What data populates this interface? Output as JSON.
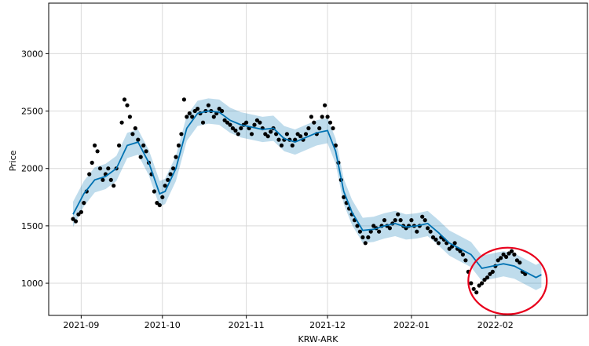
{
  "chart_data": {
    "type": "scatter",
    "title": "",
    "xlabel": "KRW-ARK",
    "ylabel": "Price",
    "x_ticks": [
      "2021-09",
      "2021-10",
      "2021-11",
      "2021-12",
      "2022-01",
      "2022-02"
    ],
    "y_ticks": [
      1000,
      1500,
      2000,
      2500,
      3000
    ],
    "xlim": [
      "2021-08-20",
      "2022-03-07"
    ],
    "ylim": [
      720,
      3440
    ],
    "grid": true,
    "series": [
      {
        "kind": "observed_points",
        "color": "#000000",
        "points": [
          [
            "2021-08-29",
            1560
          ],
          [
            "2021-08-30",
            1540
          ],
          [
            "2021-08-31",
            1600
          ],
          [
            "2021-09-01",
            1620
          ],
          [
            "2021-09-02",
            1700
          ],
          [
            "2021-09-03",
            1800
          ],
          [
            "2021-09-04",
            1950
          ],
          [
            "2021-09-05",
            2050
          ],
          [
            "2021-09-06",
            2200
          ],
          [
            "2021-09-07",
            2150
          ],
          [
            "2021-09-08",
            2000
          ],
          [
            "2021-09-09",
            1900
          ],
          [
            "2021-09-10",
            1950
          ],
          [
            "2021-09-11",
            2000
          ],
          [
            "2021-09-12",
            1900
          ],
          [
            "2021-09-13",
            1850
          ],
          [
            "2021-09-14",
            2000
          ],
          [
            "2021-09-15",
            2200
          ],
          [
            "2021-09-16",
            2400
          ],
          [
            "2021-09-17",
            2600
          ],
          [
            "2021-09-18",
            2550
          ],
          [
            "2021-09-19",
            2450
          ],
          [
            "2021-09-20",
            2300
          ],
          [
            "2021-09-21",
            2350
          ],
          [
            "2021-09-22",
            2250
          ],
          [
            "2021-09-23",
            2100
          ],
          [
            "2021-09-24",
            2200
          ],
          [
            "2021-09-25",
            2150
          ],
          [
            "2021-09-26",
            2050
          ],
          [
            "2021-09-27",
            1950
          ],
          [
            "2021-09-28",
            1800
          ],
          [
            "2021-09-29",
            1700
          ],
          [
            "2021-09-30",
            1680
          ],
          [
            "2021-10-01",
            1750
          ],
          [
            "2021-10-02",
            1850
          ],
          [
            "2021-10-03",
            1900
          ],
          [
            "2021-10-04",
            1950
          ],
          [
            "2021-10-05",
            2000
          ],
          [
            "2021-10-06",
            2100
          ],
          [
            "2021-10-07",
            2200
          ],
          [
            "2021-10-08",
            2300
          ],
          [
            "2021-10-09",
            2600
          ],
          [
            "2021-10-10",
            2450
          ],
          [
            "2021-10-11",
            2480
          ],
          [
            "2021-10-12",
            2450
          ],
          [
            "2021-10-13",
            2500
          ],
          [
            "2021-10-14",
            2520
          ],
          [
            "2021-10-15",
            2480
          ],
          [
            "2021-10-16",
            2400
          ],
          [
            "2021-10-17",
            2500
          ],
          [
            "2021-10-18",
            2550
          ],
          [
            "2021-10-19",
            2500
          ],
          [
            "2021-10-20",
            2450
          ],
          [
            "2021-10-21",
            2480
          ],
          [
            "2021-10-22",
            2520
          ],
          [
            "2021-10-23",
            2500
          ],
          [
            "2021-10-24",
            2420
          ],
          [
            "2021-10-25",
            2400
          ],
          [
            "2021-10-26",
            2380
          ],
          [
            "2021-10-27",
            2350
          ],
          [
            "2021-10-28",
            2330
          ],
          [
            "2021-10-29",
            2300
          ],
          [
            "2021-10-30",
            2350
          ],
          [
            "2021-10-31",
            2380
          ],
          [
            "2021-11-01",
            2400
          ],
          [
            "2021-11-02",
            2350
          ],
          [
            "2021-11-03",
            2300
          ],
          [
            "2021-11-04",
            2380
          ],
          [
            "2021-11-05",
            2420
          ],
          [
            "2021-11-06",
            2400
          ],
          [
            "2021-11-07",
            2350
          ],
          [
            "2021-11-08",
            2300
          ],
          [
            "2021-11-09",
            2280
          ],
          [
            "2021-11-10",
            2320
          ],
          [
            "2021-11-11",
            2350
          ],
          [
            "2021-11-12",
            2300
          ],
          [
            "2021-11-13",
            2250
          ],
          [
            "2021-11-14",
            2200
          ],
          [
            "2021-11-15",
            2250
          ],
          [
            "2021-11-16",
            2300
          ],
          [
            "2021-11-17",
            2250
          ],
          [
            "2021-11-18",
            2200
          ],
          [
            "2021-11-19",
            2250
          ],
          [
            "2021-11-20",
            2300
          ],
          [
            "2021-11-21",
            2280
          ],
          [
            "2021-11-22",
            2250
          ],
          [
            "2021-11-23",
            2300
          ],
          [
            "2021-11-24",
            2350
          ],
          [
            "2021-11-25",
            2450
          ],
          [
            "2021-11-26",
            2400
          ],
          [
            "2021-11-27",
            2300
          ],
          [
            "2021-11-28",
            2350
          ],
          [
            "2021-11-29",
            2450
          ],
          [
            "2021-11-30",
            2550
          ],
          [
            "2021-12-01",
            2450
          ],
          [
            "2021-12-02",
            2400
          ],
          [
            "2021-12-03",
            2350
          ],
          [
            "2021-12-04",
            2200
          ],
          [
            "2021-12-05",
            2050
          ],
          [
            "2021-12-06",
            1900
          ],
          [
            "2021-12-07",
            1750
          ],
          [
            "2021-12-08",
            1700
          ],
          [
            "2021-12-09",
            1650
          ],
          [
            "2021-12-10",
            1600
          ],
          [
            "2021-12-11",
            1550
          ],
          [
            "2021-12-12",
            1500
          ],
          [
            "2021-12-13",
            1450
          ],
          [
            "2021-12-14",
            1400
          ],
          [
            "2021-12-15",
            1350
          ],
          [
            "2021-12-16",
            1400
          ],
          [
            "2021-12-17",
            1450
          ],
          [
            "2021-12-18",
            1500
          ],
          [
            "2021-12-19",
            1480
          ],
          [
            "2021-12-20",
            1450
          ],
          [
            "2021-12-21",
            1500
          ],
          [
            "2021-12-22",
            1550
          ],
          [
            "2021-12-23",
            1500
          ],
          [
            "2021-12-24",
            1480
          ],
          [
            "2021-12-25",
            1520
          ],
          [
            "2021-12-26",
            1550
          ],
          [
            "2021-12-27",
            1600
          ],
          [
            "2021-12-28",
            1550
          ],
          [
            "2021-12-29",
            1500
          ],
          [
            "2021-12-30",
            1480
          ],
          [
            "2021-12-31",
            1500
          ],
          [
            "2022-01-01",
            1550
          ],
          [
            "2022-01-02",
            1500
          ],
          [
            "2022-01-03",
            1450
          ],
          [
            "2022-01-04",
            1500
          ],
          [
            "2022-01-05",
            1580
          ],
          [
            "2022-01-06",
            1550
          ],
          [
            "2022-01-07",
            1480
          ],
          [
            "2022-01-08",
            1450
          ],
          [
            "2022-01-09",
            1400
          ],
          [
            "2022-01-10",
            1380
          ],
          [
            "2022-01-11",
            1350
          ],
          [
            "2022-01-12",
            1400
          ],
          [
            "2022-01-13",
            1380
          ],
          [
            "2022-01-14",
            1350
          ],
          [
            "2022-01-15",
            1300
          ],
          [
            "2022-01-16",
            1320
          ],
          [
            "2022-01-17",
            1350
          ],
          [
            "2022-01-18",
            1300
          ],
          [
            "2022-01-19",
            1280
          ],
          [
            "2022-01-20",
            1250
          ],
          [
            "2022-01-21",
            1200
          ],
          [
            "2022-01-22",
            1100
          ],
          [
            "2022-01-23",
            1000
          ],
          [
            "2022-01-24",
            950
          ],
          [
            "2022-01-25",
            920
          ],
          [
            "2022-01-26",
            980
          ],
          [
            "2022-01-27",
            1000
          ],
          [
            "2022-01-28",
            1030
          ],
          [
            "2022-01-29",
            1050
          ],
          [
            "2022-01-30",
            1080
          ],
          [
            "2022-01-31",
            1100
          ],
          [
            "2022-02-01",
            1150
          ],
          [
            "2022-02-02",
            1200
          ],
          [
            "2022-02-03",
            1220
          ],
          [
            "2022-02-04",
            1250
          ],
          [
            "2022-02-05",
            1230
          ],
          [
            "2022-02-06",
            1260
          ],
          [
            "2022-02-07",
            1280
          ],
          [
            "2022-02-08",
            1250
          ],
          [
            "2022-02-09",
            1200
          ],
          [
            "2022-02-10",
            1180
          ],
          [
            "2022-02-11",
            1100
          ],
          [
            "2022-02-12",
            1080
          ]
        ]
      },
      {
        "kind": "forecast_line",
        "color": "#0072B2",
        "points": [
          [
            "2021-08-29",
            1600
          ],
          [
            "2021-09-02",
            1780
          ],
          [
            "2021-09-06",
            1900
          ],
          [
            "2021-09-10",
            1930
          ],
          [
            "2021-09-14",
            2000
          ],
          [
            "2021-09-18",
            2200
          ],
          [
            "2021-09-22",
            2230
          ],
          [
            "2021-09-26",
            2050
          ],
          [
            "2021-09-30",
            1780
          ],
          [
            "2021-10-02",
            1800
          ],
          [
            "2021-10-06",
            2000
          ],
          [
            "2021-10-10",
            2350
          ],
          [
            "2021-10-14",
            2480
          ],
          [
            "2021-10-18",
            2500
          ],
          [
            "2021-10-22",
            2490
          ],
          [
            "2021-10-26",
            2420
          ],
          [
            "2021-10-30",
            2380
          ],
          [
            "2021-11-03",
            2360
          ],
          [
            "2021-11-07",
            2340
          ],
          [
            "2021-11-11",
            2350
          ],
          [
            "2021-11-15",
            2260
          ],
          [
            "2021-11-19",
            2230
          ],
          [
            "2021-11-23",
            2270
          ],
          [
            "2021-11-27",
            2310
          ],
          [
            "2021-12-01",
            2330
          ],
          [
            "2021-12-04",
            2150
          ],
          [
            "2021-12-07",
            1800
          ],
          [
            "2021-12-10",
            1620
          ],
          [
            "2021-12-14",
            1460
          ],
          [
            "2021-12-18",
            1470
          ],
          [
            "2021-12-22",
            1500
          ],
          [
            "2021-12-26",
            1520
          ],
          [
            "2021-12-30",
            1490
          ],
          [
            "2022-01-03",
            1500
          ],
          [
            "2022-01-07",
            1520
          ],
          [
            "2022-01-11",
            1440
          ],
          [
            "2022-01-15",
            1350
          ],
          [
            "2022-01-19",
            1300
          ],
          [
            "2022-01-23",
            1250
          ],
          [
            "2022-01-27",
            1130
          ],
          [
            "2022-01-31",
            1150
          ],
          [
            "2022-02-04",
            1170
          ],
          [
            "2022-02-08",
            1150
          ],
          [
            "2022-02-12",
            1100
          ],
          [
            "2022-02-16",
            1050
          ],
          [
            "2022-02-18",
            1075
          ]
        ]
      }
    ],
    "uncertainty_band": {
      "color": "#0072B2",
      "opacity": 0.25,
      "half_width": 110
    },
    "annotations": [
      {
        "type": "circle_highlight",
        "color": "#e8001c",
        "x_from": "2022-01-22",
        "x_to": "2022-02-20",
        "y_from": 730,
        "y_to": 1310
      }
    ]
  }
}
